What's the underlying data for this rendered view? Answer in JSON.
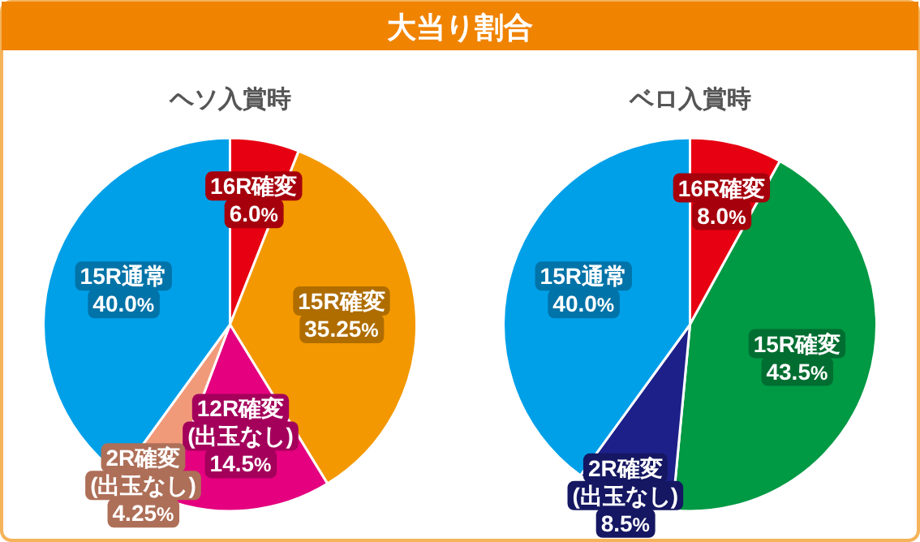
{
  "chart_data": [
    {
      "type": "pie",
      "title": "大当り割合",
      "subtitle": "ヘソ入賞時",
      "categories": [
        "16R確変",
        "15R確変",
        "12R確変(出玉なし)",
        "2R確変(出玉なし)",
        "15R通常"
      ],
      "values": [
        6.0,
        35.25,
        14.5,
        4.25,
        40.0
      ],
      "value_labels": [
        "6.0%",
        "35.25%",
        "14.5%",
        "4.25%",
        "40.0%"
      ],
      "colors": [
        "#e60012",
        "#f39800",
        "#e4007f",
        "#f19a7a",
        "#00a0e9"
      ]
    },
    {
      "type": "pie",
      "subtitle": "ベロ入賞時",
      "categories": [
        "16R確変",
        "15R確変",
        "2R確変(出玉なし)",
        "15R通常"
      ],
      "values": [
        8.0,
        43.5,
        8.5,
        40.0
      ],
      "value_labels": [
        "8.0%",
        "43.5%",
        "8.5%",
        "40.0%"
      ],
      "colors": [
        "#e60012",
        "#009944",
        "#1d2088",
        "#00a0e9"
      ]
    }
  ]
}
